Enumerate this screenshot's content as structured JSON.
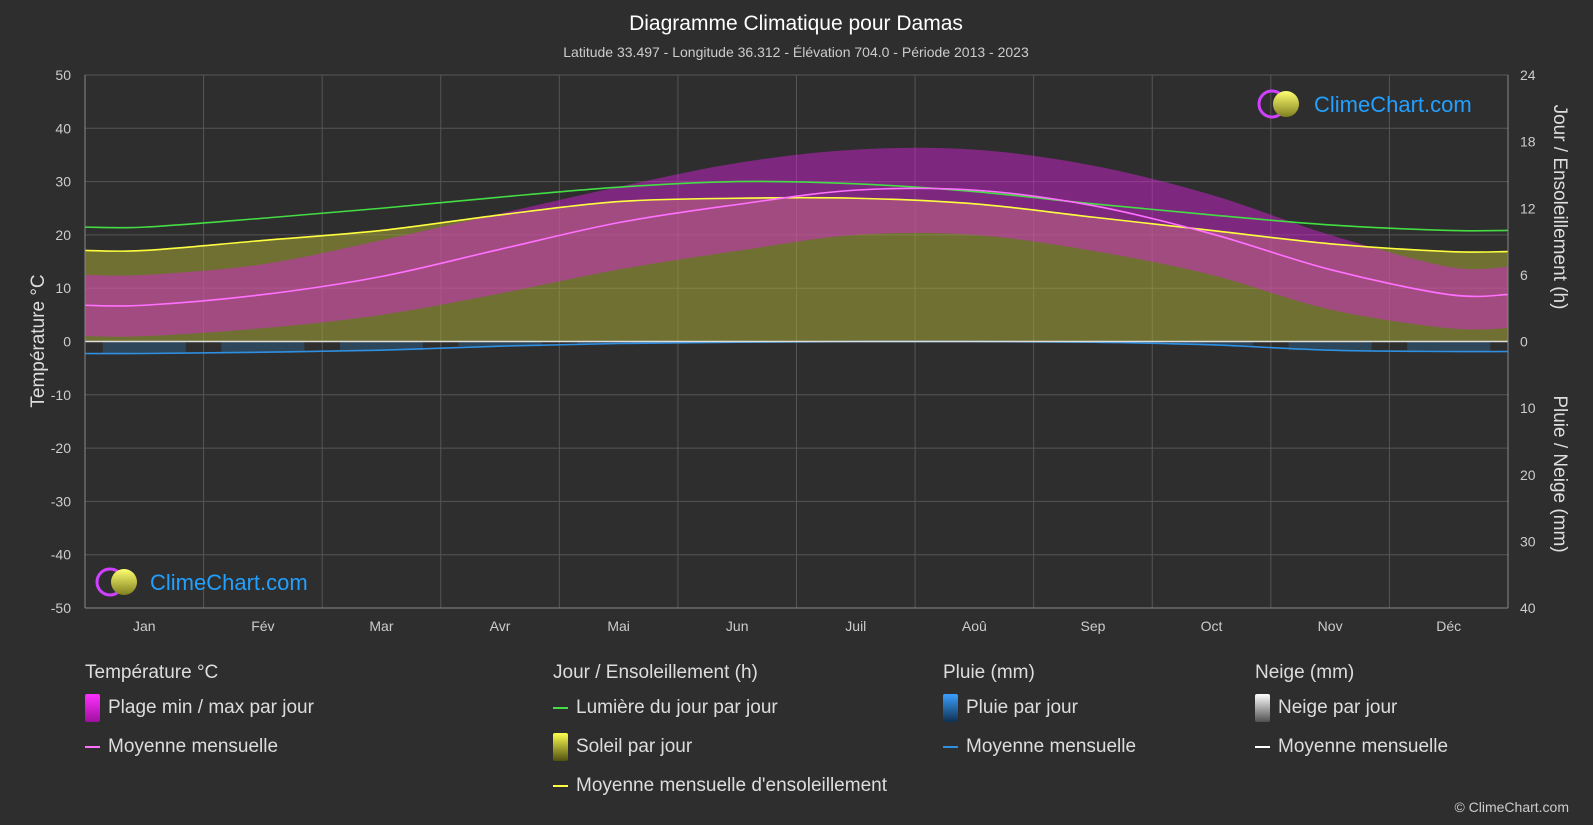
{
  "chart_data": {
    "type": "area",
    "title": "Diagramme Climatique pour Damas",
    "subtitle": "Latitude 33.497 - Longitude 36.312 - Élévation 704.0 - Période 2013 - 2023",
    "ylabel_left": "Température °C",
    "ylabel_right_top": "Jour / Ensoleillement (h)",
    "ylabel_right_bottom": "Pluie / Neige (mm)",
    "y_left_ticks": [
      "50",
      "40",
      "30",
      "20",
      "10",
      "0",
      "-10",
      "-20",
      "-30",
      "-40",
      "-50"
    ],
    "y_right_top_ticks": [
      "24",
      "18",
      "12",
      "6",
      "0"
    ],
    "y_right_bottom_ticks": [
      "10",
      "20",
      "30",
      "40"
    ],
    "ylim_temp": [
      -50,
      50
    ],
    "ylim_hours": [
      0,
      24
    ],
    "ylim_precip": [
      0,
      40
    ],
    "months": [
      "Jan",
      "Fév",
      "Mar",
      "Avr",
      "Mai",
      "Jun",
      "Juil",
      "Aoû",
      "Sep",
      "Oct",
      "Nov",
      "Déc"
    ],
    "temp_mean": [
      6.8,
      8.8,
      12.2,
      17.3,
      22.3,
      25.7,
      28.4,
      28.4,
      25.5,
      20.2,
      13.5,
      8.8
    ],
    "temp_max": [
      12.5,
      14.5,
      19,
      24,
      29,
      33.5,
      36,
      36,
      33,
      27.5,
      20,
      14
    ],
    "temp_min": [
      1,
      2.5,
      5,
      9,
      13.5,
      17,
      20,
      20,
      17,
      12.5,
      6,
      2.5
    ],
    "daylight_hours": [
      10.3,
      11.1,
      12.0,
      13.0,
      13.9,
      14.4,
      14.2,
      13.5,
      12.4,
      11.4,
      10.5,
      10.0
    ],
    "sunshine_hours": [
      8.2,
      9.1,
      10.0,
      11.4,
      12.6,
      12.9,
      12.9,
      12.4,
      11.2,
      10.0,
      8.8,
      8.1
    ],
    "rain_mean_mm": [
      1.8,
      1.6,
      1.3,
      0.7,
      0.3,
      0.1,
      0.0,
      0.0,
      0.1,
      0.5,
      1.3,
      1.5
    ],
    "grid": true,
    "colors": {
      "background": "#2e2e2e",
      "temp_range": "#e020e0",
      "temp_mean": "#ff70ff",
      "daylight": "#44dd44",
      "sunshine_fill": "#a8a838",
      "sunshine_mean": "#ffff40",
      "rain": "#2f8fe0",
      "snow": "#ffffff",
      "brand": "#22a0ff"
    }
  },
  "watermark": {
    "text": "ClimeChart.com"
  },
  "legend": {
    "temperature": {
      "header": "Température °C",
      "items": [
        "Plage min / max par jour",
        "Moyenne mensuelle"
      ]
    },
    "sun": {
      "header": "Jour / Ensoleillement (h)",
      "items": [
        "Lumière du jour par jour",
        "Soleil par jour",
        "Moyenne mensuelle d'ensoleillement"
      ]
    },
    "rain": {
      "header": "Pluie (mm)",
      "items": [
        "Pluie par jour",
        "Moyenne mensuelle"
      ]
    },
    "snow": {
      "header": "Neige (mm)",
      "items": [
        "Neige par jour",
        "Moyenne mensuelle"
      ]
    }
  },
  "copyright": "© ClimeChart.com"
}
